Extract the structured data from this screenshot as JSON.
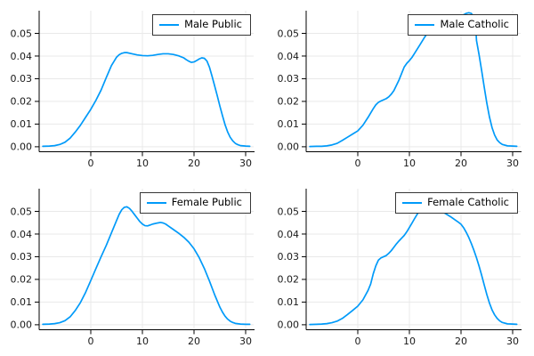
{
  "figure": {
    "background": "#ffffff",
    "rows": 2,
    "cols": 2
  },
  "colors": {
    "series_line": "#009AF9",
    "gridline": "#e9e9e9",
    "axis": "#000000",
    "tick_label": "#191919",
    "legend_border": "#363636",
    "legend_background": "#ffffff"
  },
  "chart_data": [
    {
      "type": "line",
      "series_label": "Male Public",
      "color": "#009AF9",
      "grid": true,
      "legend_position": "top-right",
      "xlabel": "",
      "ylabel": "",
      "xlim": [
        -10.0,
        31.55
      ],
      "ylim": [
        -0.0022,
        0.06
      ],
      "x_ticks": {
        "values": [
          0,
          10,
          20,
          30
        ],
        "labels": [
          "0",
          "10",
          "20",
          "30"
        ]
      },
      "y_ticks": {
        "values": [
          0,
          0.01,
          0.02,
          0.03,
          0.04,
          0.05
        ],
        "labels": [
          "0.00",
          "0.01",
          "0.02",
          "0.03",
          "0.04",
          "0.05"
        ]
      },
      "points": [
        [
          -9.3,
          0.0002
        ],
        [
          -8,
          0.0003
        ],
        [
          -7,
          0.0005
        ],
        [
          -6,
          0.001
        ],
        [
          -5,
          0.002
        ],
        [
          -4,
          0.0038
        ],
        [
          -3,
          0.0065
        ],
        [
          -2,
          0.0095
        ],
        [
          -1,
          0.013
        ],
        [
          0,
          0.0165
        ],
        [
          1,
          0.0205
        ],
        [
          2,
          0.025
        ],
        [
          3,
          0.0305
        ],
        [
          4,
          0.0358
        ],
        [
          5,
          0.0395
        ],
        [
          5.5,
          0.0406
        ],
        [
          6,
          0.0412
        ],
        [
          6.5,
          0.0415
        ],
        [
          7,
          0.0415
        ],
        [
          8,
          0.041
        ],
        [
          9,
          0.0405
        ],
        [
          10,
          0.0402
        ],
        [
          11,
          0.0401
        ],
        [
          12,
          0.0403
        ],
        [
          13,
          0.0407
        ],
        [
          14,
          0.041
        ],
        [
          15,
          0.041
        ],
        [
          16,
          0.0407
        ],
        [
          17,
          0.0401
        ],
        [
          18,
          0.0392
        ],
        [
          18.5,
          0.0384
        ],
        [
          19,
          0.0377
        ],
        [
          19.5,
          0.0372
        ],
        [
          20,
          0.0374
        ],
        [
          20.5,
          0.038
        ],
        [
          21,
          0.0387
        ],
        [
          21.5,
          0.0392
        ],
        [
          22,
          0.039
        ],
        [
          22.5,
          0.0378
        ],
        [
          23,
          0.035
        ],
        [
          23.5,
          0.031
        ],
        [
          24,
          0.0268
        ],
        [
          24.5,
          0.0225
        ],
        [
          25,
          0.018
        ],
        [
          25.5,
          0.0138
        ],
        [
          26,
          0.0098
        ],
        [
          26.5,
          0.0066
        ],
        [
          27,
          0.0042
        ],
        [
          27.5,
          0.0026
        ],
        [
          28,
          0.0015
        ],
        [
          28.5,
          0.0009
        ],
        [
          29,
          0.0005
        ],
        [
          30,
          0.0003
        ],
        [
          30.8,
          0.0002
        ]
      ]
    },
    {
      "type": "line",
      "series_label": "Male Catholic",
      "color": "#009AF9",
      "grid": true,
      "legend_position": "top-right",
      "xlabel": "",
      "ylabel": "",
      "xlim": [
        -10.0,
        31.55
      ],
      "ylim": [
        -0.0022,
        0.06
      ],
      "x_ticks": {
        "values": [
          0,
          10,
          20,
          30
        ],
        "labels": [
          "0",
          "10",
          "20",
          "30"
        ]
      },
      "y_ticks": {
        "values": [
          0,
          0.01,
          0.02,
          0.03,
          0.04,
          0.05
        ],
        "labels": [
          "0.00",
          "0.01",
          "0.02",
          "0.03",
          "0.04",
          "0.05"
        ]
      },
      "points": [
        [
          -9.3,
          0.0001
        ],
        [
          -8,
          0.0002
        ],
        [
          -7,
          0.0002
        ],
        [
          -6,
          0.0004
        ],
        [
          -5,
          0.0008
        ],
        [
          -4,
          0.0015
        ],
        [
          -3,
          0.0028
        ],
        [
          -2,
          0.0042
        ],
        [
          -1,
          0.0056
        ],
        [
          0,
          0.007
        ],
        [
          1,
          0.0095
        ],
        [
          2,
          0.013
        ],
        [
          3,
          0.0168
        ],
        [
          3.5,
          0.0185
        ],
        [
          4,
          0.0196
        ],
        [
          4.5,
          0.0202
        ],
        [
          5,
          0.0207
        ],
        [
          5.5,
          0.0212
        ],
        [
          6,
          0.022
        ],
        [
          6.5,
          0.0232
        ],
        [
          7,
          0.0248
        ],
        [
          8,
          0.0295
        ],
        [
          9,
          0.0352
        ],
        [
          9.5,
          0.0368
        ],
        [
          10,
          0.038
        ],
        [
          10.5,
          0.0394
        ],
        [
          11,
          0.0412
        ],
        [
          12,
          0.0448
        ],
        [
          13,
          0.0485
        ],
        [
          14,
          0.0515
        ],
        [
          15,
          0.0535
        ],
        [
          16,
          0.0549
        ],
        [
          17,
          0.0559
        ],
        [
          18,
          0.0566
        ],
        [
          19,
          0.0572
        ],
        [
          20,
          0.0578
        ],
        [
          20.5,
          0.0582
        ],
        [
          21,
          0.0588
        ],
        [
          21.5,
          0.0591
        ],
        [
          22,
          0.0588
        ],
        [
          22.5,
          0.0572
        ],
        [
          22.8,
          0.0545
        ],
        [
          23,
          0.0468
        ],
        [
          23.5,
          0.0405
        ],
        [
          24,
          0.0335
        ],
        [
          24.5,
          0.0262
        ],
        [
          25,
          0.0192
        ],
        [
          25.5,
          0.0132
        ],
        [
          26,
          0.0085
        ],
        [
          26.5,
          0.0052
        ],
        [
          27,
          0.003
        ],
        [
          27.5,
          0.0018
        ],
        [
          28,
          0.001
        ],
        [
          29,
          0.0004
        ],
        [
          30,
          0.0003
        ],
        [
          30.8,
          0.0002
        ]
      ]
    },
    {
      "type": "line",
      "series_label": "Female Public",
      "color": "#009AF9",
      "grid": true,
      "legend_position": "top-right",
      "xlabel": "",
      "ylabel": "",
      "xlim": [
        -10.0,
        31.55
      ],
      "ylim": [
        -0.0022,
        0.06
      ],
      "x_ticks": {
        "values": [
          0,
          10,
          20,
          30
        ],
        "labels": [
          "0",
          "10",
          "20",
          "30"
        ]
      },
      "y_ticks": {
        "values": [
          0,
          0.01,
          0.02,
          0.03,
          0.04,
          0.05
        ],
        "labels": [
          "0.00",
          "0.01",
          "0.02",
          "0.03",
          "0.04",
          "0.05"
        ]
      },
      "points": [
        [
          -9.3,
          0.0002
        ],
        [
          -8,
          0.0003
        ],
        [
          -7,
          0.0005
        ],
        [
          -6,
          0.0009
        ],
        [
          -5,
          0.0018
        ],
        [
          -4,
          0.0035
        ],
        [
          -3,
          0.0063
        ],
        [
          -2,
          0.0098
        ],
        [
          -1,
          0.0143
        ],
        [
          0,
          0.0195
        ],
        [
          1,
          0.0248
        ],
        [
          2,
          0.03
        ],
        [
          3,
          0.035
        ],
        [
          4,
          0.0405
        ],
        [
          5,
          0.046
        ],
        [
          5.5,
          0.0487
        ],
        [
          6,
          0.0507
        ],
        [
          6.5,
          0.0518
        ],
        [
          7,
          0.052
        ],
        [
          7.5,
          0.0513
        ],
        [
          8,
          0.05
        ],
        [
          8.5,
          0.0485
        ],
        [
          9,
          0.047
        ],
        [
          9.5,
          0.0455
        ],
        [
          10,
          0.0444
        ],
        [
          10.5,
          0.0437
        ],
        [
          11,
          0.0436
        ],
        [
          11.5,
          0.044
        ],
        [
          12,
          0.0444
        ],
        [
          13,
          0.0449
        ],
        [
          13.5,
          0.0451
        ],
        [
          14,
          0.0449
        ],
        [
          14.5,
          0.0444
        ],
        [
          15,
          0.0436
        ],
        [
          16,
          0.042
        ],
        [
          17,
          0.0404
        ],
        [
          18,
          0.0386
        ],
        [
          19,
          0.0364
        ],
        [
          20,
          0.0335
        ],
        [
          21,
          0.0296
        ],
        [
          22,
          0.0248
        ],
        [
          23,
          0.0192
        ],
        [
          24,
          0.0132
        ],
        [
          25,
          0.0078
        ],
        [
          25.5,
          0.0056
        ],
        [
          26,
          0.0038
        ],
        [
          26.5,
          0.0025
        ],
        [
          27,
          0.0016
        ],
        [
          27.5,
          0.001
        ],
        [
          28,
          0.0006
        ],
        [
          29,
          0.0003
        ],
        [
          30,
          0.0002
        ],
        [
          30.8,
          0.0002
        ]
      ]
    },
    {
      "type": "line",
      "series_label": "Female Catholic",
      "color": "#009AF9",
      "grid": true,
      "legend_position": "top-right",
      "xlabel": "",
      "ylabel": "",
      "xlim": [
        -10.0,
        31.55
      ],
      "ylim": [
        -0.0022,
        0.06
      ],
      "x_ticks": {
        "values": [
          0,
          10,
          20,
          30
        ],
        "labels": [
          "0",
          "10",
          "20",
          "30"
        ]
      },
      "y_ticks": {
        "values": [
          0,
          0.01,
          0.02,
          0.03,
          0.04,
          0.05
        ],
        "labels": [
          "0.00",
          "0.01",
          "0.02",
          "0.03",
          "0.04",
          "0.05"
        ]
      },
      "points": [
        [
          -9.3,
          0.0001
        ],
        [
          -8,
          0.0002
        ],
        [
          -7,
          0.0003
        ],
        [
          -6,
          0.0005
        ],
        [
          -5,
          0.0009
        ],
        [
          -4,
          0.0016
        ],
        [
          -3,
          0.0028
        ],
        [
          -2,
          0.0045
        ],
        [
          -1,
          0.0063
        ],
        [
          0,
          0.0082
        ],
        [
          1,
          0.011
        ],
        [
          2,
          0.0152
        ],
        [
          2.5,
          0.018
        ],
        [
          3,
          0.0225
        ],
        [
          3.5,
          0.026
        ],
        [
          4,
          0.0285
        ],
        [
          4.5,
          0.0295
        ],
        [
          5,
          0.03
        ],
        [
          5.5,
          0.0305
        ],
        [
          6,
          0.0315
        ],
        [
          6.5,
          0.0327
        ],
        [
          7,
          0.0342
        ],
        [
          7.5,
          0.0357
        ],
        [
          8,
          0.037
        ],
        [
          8.5,
          0.0382
        ],
        [
          9,
          0.0394
        ],
        [
          9.5,
          0.041
        ],
        [
          10,
          0.0429
        ],
        [
          10.5,
          0.0448
        ],
        [
          11,
          0.0468
        ],
        [
          11.5,
          0.0487
        ],
        [
          12,
          0.0503
        ],
        [
          12.5,
          0.0513
        ],
        [
          13,
          0.0519
        ],
        [
          13.5,
          0.0521
        ],
        [
          14,
          0.0519
        ],
        [
          15,
          0.0512
        ],
        [
          16,
          0.0502
        ],
        [
          17,
          0.049
        ],
        [
          18,
          0.0476
        ],
        [
          19,
          0.046
        ],
        [
          19.5,
          0.0452
        ],
        [
          20,
          0.0443
        ],
        [
          20.5,
          0.0428
        ],
        [
          21,
          0.0408
        ],
        [
          21.5,
          0.0385
        ],
        [
          22,
          0.0358
        ],
        [
          22.5,
          0.0328
        ],
        [
          23,
          0.0295
        ],
        [
          23.5,
          0.0258
        ],
        [
          24,
          0.0218
        ],
        [
          24.5,
          0.0175
        ],
        [
          25,
          0.0133
        ],
        [
          25.5,
          0.0096
        ],
        [
          26,
          0.0066
        ],
        [
          26.5,
          0.0044
        ],
        [
          27,
          0.0028
        ],
        [
          27.5,
          0.0017
        ],
        [
          28,
          0.001
        ],
        [
          29,
          0.0004
        ],
        [
          30,
          0.0003
        ],
        [
          30.8,
          0.0002
        ]
      ]
    }
  ]
}
